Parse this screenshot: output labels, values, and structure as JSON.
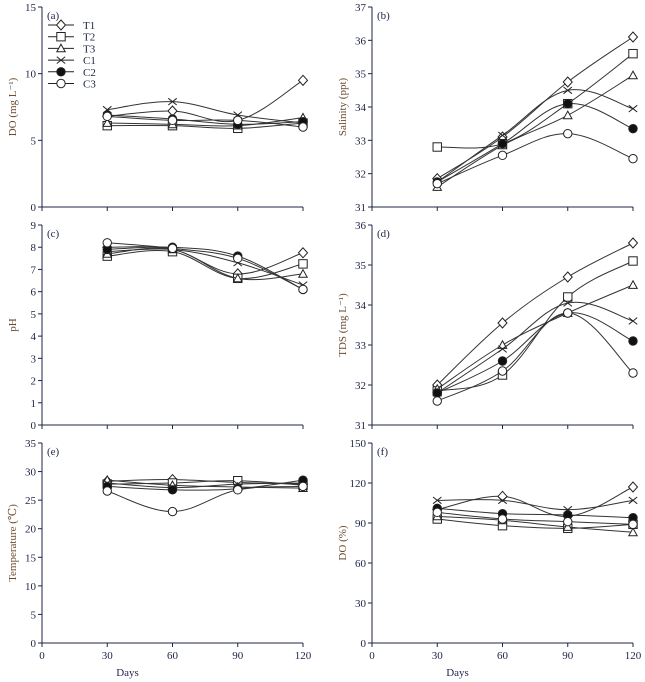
{
  "chart_data": [
    {
      "type": "line",
      "panel_label": "(a)",
      "ylabel": "DO (mg L⁻¹)",
      "ylim": [
        0,
        15
      ],
      "yticks": [
        0,
        5,
        10,
        15
      ],
      "xlim": [
        0,
        120
      ],
      "xticks": [
        0,
        30,
        60,
        90,
        120
      ],
      "x": [
        30,
        60,
        90,
        120
      ],
      "show_xtick_labels": false,
      "xlabel": "",
      "legend": "top-left",
      "series": [
        {
          "name": "T1",
          "marker": "diamond-open",
          "values": [
            6.8,
            7.2,
            6.5,
            9.5
          ]
        },
        {
          "name": "T2",
          "marker": "square-open",
          "values": [
            6.1,
            6.1,
            5.9,
            6.3
          ]
        },
        {
          "name": "T3",
          "marker": "triangle-open",
          "values": [
            6.3,
            6.2,
            6.1,
            6.7
          ]
        },
        {
          "name": "C1",
          "marker": "x",
          "values": [
            7.3,
            7.9,
            6.9,
            6.3
          ]
        },
        {
          "name": "C2",
          "marker": "circle-filled",
          "values": [
            6.9,
            6.6,
            6.2,
            6.4
          ]
        },
        {
          "name": "C3",
          "marker": "circle-open",
          "values": [
            6.8,
            6.5,
            6.5,
            6.0
          ]
        }
      ]
    },
    {
      "type": "line",
      "panel_label": "(b)",
      "ylabel": "Salinity (ppt)",
      "ylim": [
        31,
        37
      ],
      "yticks": [
        31,
        32,
        33,
        34,
        35,
        36,
        37
      ],
      "xlim": [
        0,
        120
      ],
      "xticks": [
        0,
        30,
        60,
        90,
        120
      ],
      "x": [
        30,
        60,
        90,
        120
      ],
      "show_xtick_labels": false,
      "xlabel": "",
      "series": [
        {
          "name": "T1",
          "marker": "diamond-open",
          "values": [
            31.85,
            33.1,
            34.75,
            36.1
          ]
        },
        {
          "name": "T2",
          "marker": "square-open",
          "values": [
            32.8,
            32.9,
            34.1,
            35.6
          ]
        },
        {
          "name": "T3",
          "marker": "triangle-open",
          "values": [
            31.6,
            32.85,
            33.75,
            34.95
          ]
        },
        {
          "name": "C1",
          "marker": "x",
          "values": [
            31.75,
            33.15,
            34.5,
            33.95
          ]
        },
        {
          "name": "C2",
          "marker": "circle-filled",
          "values": [
            31.75,
            32.9,
            34.1,
            33.35
          ]
        },
        {
          "name": "C3",
          "marker": "circle-open",
          "values": [
            31.7,
            32.55,
            33.2,
            32.45
          ]
        }
      ]
    },
    {
      "type": "line",
      "panel_label": "(c)",
      "ylabel": "pH",
      "ylim": [
        0,
        9
      ],
      "yticks": [
        0,
        1,
        2,
        3,
        4,
        5,
        6,
        7,
        8,
        9
      ],
      "xlim": [
        0,
        120
      ],
      "xticks": [
        0,
        30,
        60,
        90,
        120
      ],
      "x": [
        30,
        60,
        90,
        120
      ],
      "show_xtick_labels": false,
      "xlabel": "",
      "series": [
        {
          "name": "T1",
          "marker": "diamond-open",
          "values": [
            8.0,
            7.9,
            6.8,
            7.75
          ]
        },
        {
          "name": "T2",
          "marker": "square-open",
          "values": [
            7.6,
            7.8,
            6.6,
            7.25
          ]
        },
        {
          "name": "T3",
          "marker": "triangle-open",
          "values": [
            7.7,
            7.9,
            6.6,
            6.8
          ]
        },
        {
          "name": "C1",
          "marker": "x",
          "values": [
            7.8,
            7.9,
            7.3,
            6.3
          ]
        },
        {
          "name": "C2",
          "marker": "circle-filled",
          "values": [
            7.9,
            8.0,
            7.6,
            6.1
          ]
        },
        {
          "name": "C3",
          "marker": "circle-open",
          "values": [
            8.2,
            7.95,
            7.5,
            6.1
          ]
        }
      ]
    },
    {
      "type": "line",
      "panel_label": "(d)",
      "ylabel": "TDS (mg L⁻¹)",
      "ylim": [
        31,
        36
      ],
      "yticks": [
        31,
        32,
        33,
        34,
        35,
        36
      ],
      "xlim": [
        0,
        120
      ],
      "xticks": [
        0,
        30,
        60,
        90,
        120
      ],
      "x": [
        30,
        60,
        90,
        120
      ],
      "show_xtick_labels": false,
      "xlabel": "",
      "series": [
        {
          "name": "T1",
          "marker": "diamond-open",
          "values": [
            32.0,
            33.55,
            34.7,
            35.55
          ]
        },
        {
          "name": "T2",
          "marker": "square-open",
          "values": [
            31.85,
            32.25,
            34.2,
            35.1
          ]
        },
        {
          "name": "T3",
          "marker": "triangle-open",
          "values": [
            31.9,
            33.0,
            33.8,
            34.5
          ]
        },
        {
          "name": "C1",
          "marker": "x",
          "values": [
            31.8,
            32.9,
            34.05,
            33.6
          ]
        },
        {
          "name": "C2",
          "marker": "circle-filled",
          "values": [
            31.8,
            32.6,
            33.8,
            33.1
          ]
        },
        {
          "name": "C3",
          "marker": "circle-open",
          "values": [
            31.6,
            32.35,
            33.8,
            32.3
          ]
        }
      ]
    },
    {
      "type": "line",
      "panel_label": "(e)",
      "ylabel": "Temperature (℃)",
      "ylim": [
        0,
        35
      ],
      "yticks": [
        0,
        5,
        10,
        15,
        20,
        25,
        30,
        35
      ],
      "xlim": [
        0,
        120
      ],
      "xticks": [
        0,
        30,
        60,
        90,
        120
      ],
      "x": [
        30,
        60,
        90,
        120
      ],
      "show_xtick_labels": true,
      "xlabel": "Days",
      "series": [
        {
          "name": "T1",
          "marker": "diamond-open",
          "values": [
            28.3,
            28.6,
            28.1,
            27.8
          ]
        },
        {
          "name": "T2",
          "marker": "square-open",
          "values": [
            27.8,
            28.0,
            28.4,
            27.6
          ]
        },
        {
          "name": "T3",
          "marker": "triangle-open",
          "values": [
            28.5,
            27.6,
            27.3,
            27.1
          ]
        },
        {
          "name": "C1",
          "marker": "x",
          "values": [
            28.0,
            27.2,
            27.8,
            28.0
          ]
        },
        {
          "name": "C2",
          "marker": "circle-filled",
          "values": [
            27.4,
            26.8,
            27.0,
            28.5
          ]
        },
        {
          "name": "C3",
          "marker": "circle-open",
          "values": [
            26.6,
            23.0,
            26.8,
            27.4
          ]
        }
      ]
    },
    {
      "type": "line",
      "panel_label": "(f)",
      "ylabel": "DO (%)",
      "ylim": [
        0,
        150
      ],
      "yticks": [
        0,
        30,
        60,
        90,
        120,
        150
      ],
      "xlim": [
        0,
        120
      ],
      "xticks": [
        0,
        30,
        60,
        90,
        120
      ],
      "x": [
        30,
        60,
        90,
        120
      ],
      "show_xtick_labels": true,
      "xlabel": "Days",
      "series": [
        {
          "name": "T1",
          "marker": "diamond-open",
          "values": [
            100,
            110,
            95,
            117
          ]
        },
        {
          "name": "T2",
          "marker": "square-open",
          "values": [
            93,
            88,
            86,
            89
          ]
        },
        {
          "name": "T3",
          "marker": "triangle-open",
          "values": [
            95,
            92,
            87,
            83
          ]
        },
        {
          "name": "C1",
          "marker": "x",
          "values": [
            107,
            107,
            100,
            107
          ]
        },
        {
          "name": "C2",
          "marker": "circle-filled",
          "values": [
            101,
            97,
            96,
            94
          ]
        },
        {
          "name": "C3",
          "marker": "circle-open",
          "values": [
            98,
            93,
            91,
            89
          ]
        }
      ]
    }
  ],
  "colors": {
    "line": "#333333",
    "axis": "#1c2444",
    "ylabel": "#6b4a2e"
  }
}
